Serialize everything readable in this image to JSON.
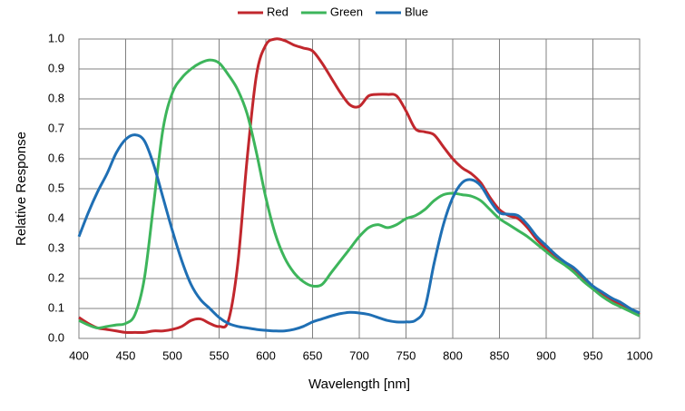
{
  "chart_data": {
    "type": "line",
    "x_label": "Wavelength [nm]",
    "y_label": "Relative Response",
    "x": [
      400,
      410,
      420,
      430,
      440,
      450,
      460,
      470,
      480,
      490,
      500,
      510,
      520,
      530,
      540,
      550,
      560,
      570,
      580,
      590,
      600,
      610,
      620,
      630,
      640,
      650,
      660,
      670,
      680,
      690,
      700,
      710,
      720,
      730,
      740,
      750,
      760,
      770,
      780,
      790,
      800,
      810,
      820,
      830,
      840,
      850,
      860,
      870,
      880,
      890,
      900,
      910,
      920,
      930,
      940,
      950,
      960,
      970,
      980,
      990,
      1000
    ],
    "series": [
      {
        "name": "Red",
        "color": "#c1272d",
        "values": [
          0.07,
          0.05,
          0.035,
          0.03,
          0.025,
          0.02,
          0.02,
          0.02,
          0.025,
          0.025,
          0.03,
          0.04,
          0.06,
          0.065,
          0.05,
          0.04,
          0.06,
          0.25,
          0.6,
          0.88,
          0.98,
          1.0,
          0.995,
          0.98,
          0.97,
          0.96,
          0.92,
          0.87,
          0.82,
          0.78,
          0.775,
          0.81,
          0.815,
          0.815,
          0.81,
          0.76,
          0.7,
          0.69,
          0.68,
          0.64,
          0.6,
          0.57,
          0.55,
          0.52,
          0.47,
          0.43,
          0.41,
          0.4,
          0.37,
          0.33,
          0.3,
          0.27,
          0.25,
          0.23,
          0.2,
          0.17,
          0.15,
          0.13,
          0.11,
          0.095,
          0.08
        ]
      },
      {
        "name": "Green",
        "color": "#3db55b",
        "values": [
          0.06,
          0.045,
          0.035,
          0.04,
          0.045,
          0.05,
          0.08,
          0.2,
          0.45,
          0.7,
          0.82,
          0.87,
          0.9,
          0.92,
          0.93,
          0.92,
          0.88,
          0.83,
          0.75,
          0.62,
          0.47,
          0.35,
          0.27,
          0.22,
          0.19,
          0.175,
          0.18,
          0.22,
          0.26,
          0.3,
          0.34,
          0.37,
          0.38,
          0.37,
          0.38,
          0.4,
          0.41,
          0.43,
          0.46,
          0.48,
          0.485,
          0.48,
          0.475,
          0.46,
          0.43,
          0.4,
          0.38,
          0.36,
          0.34,
          0.315,
          0.29,
          0.265,
          0.245,
          0.22,
          0.19,
          0.165,
          0.14,
          0.12,
          0.105,
          0.09,
          0.075
        ]
      },
      {
        "name": "Blue",
        "color": "#1f6fb4",
        "values": [
          0.34,
          0.42,
          0.49,
          0.55,
          0.62,
          0.665,
          0.68,
          0.66,
          0.58,
          0.47,
          0.36,
          0.26,
          0.18,
          0.13,
          0.1,
          0.07,
          0.05,
          0.04,
          0.035,
          0.03,
          0.027,
          0.025,
          0.025,
          0.03,
          0.04,
          0.055,
          0.065,
          0.075,
          0.083,
          0.087,
          0.085,
          0.08,
          0.07,
          0.06,
          0.055,
          0.055,
          0.06,
          0.1,
          0.25,
          0.38,
          0.47,
          0.52,
          0.53,
          0.51,
          0.46,
          0.42,
          0.415,
          0.41,
          0.38,
          0.34,
          0.31,
          0.28,
          0.255,
          0.235,
          0.205,
          0.175,
          0.155,
          0.135,
          0.12,
          0.1,
          0.085
        ]
      }
    ],
    "xlim": [
      400,
      1000
    ],
    "xticks": [
      400,
      450,
      500,
      550,
      600,
      650,
      700,
      750,
      800,
      850,
      900,
      950,
      1000
    ],
    "ylim": [
      0,
      1
    ],
    "yticks": [
      {
        "value": 0,
        "label": "0.0"
      },
      0.1,
      0.2,
      0.3,
      0.4,
      0.5,
      0.6,
      0.7,
      0.8,
      0.9,
      {
        "value": 1,
        "label": "1.0"
      }
    ],
    "grid": true,
    "legend": "top"
  }
}
